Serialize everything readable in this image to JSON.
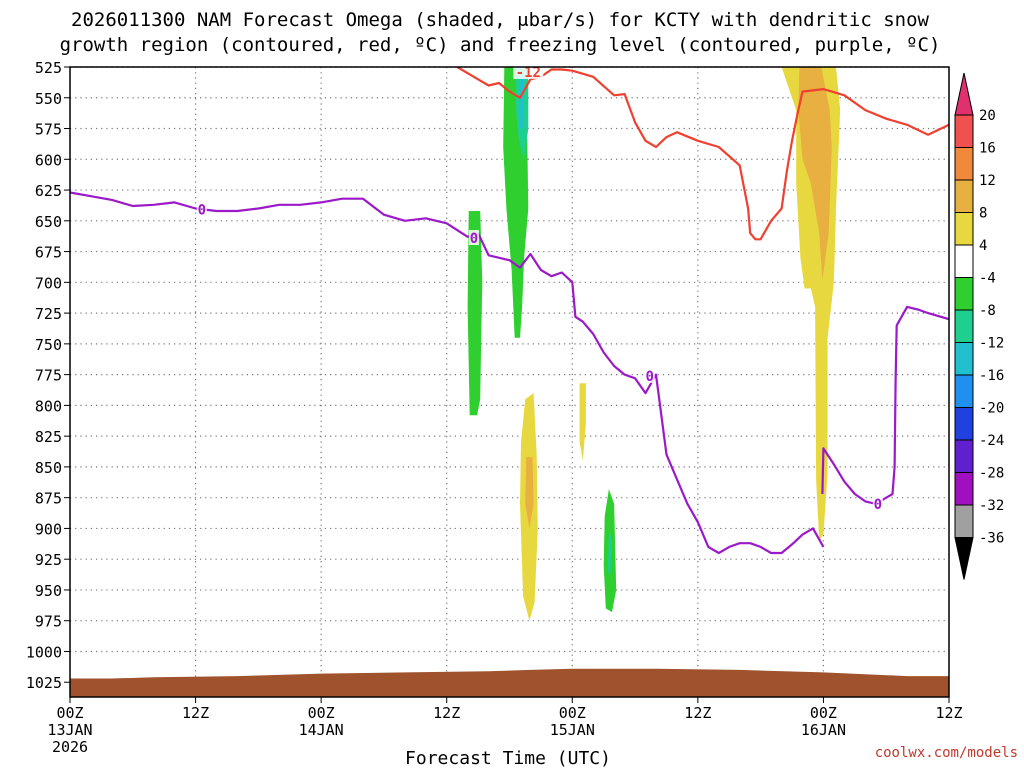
{
  "chart_data": {
    "type": "time-height forecast",
    "title_line1": "2026011300 NAM Forecast Omega (shaded, μbar/s) for KCTY with dendritic snow",
    "title_line2": "growth region (contoured, red, ºC) and freezing level (contoured, purple, ºC)",
    "xlabel": "Forecast Time (UTC)",
    "credit": "coolwx.com/models",
    "x_unit": "forecast hours from 2026-01-13 00Z",
    "xlim": [
      0,
      84
    ],
    "ylim": [
      525,
      1037
    ],
    "y_ticks": [
      525,
      550,
      575,
      600,
      625,
      650,
      675,
      700,
      725,
      750,
      775,
      800,
      825,
      850,
      875,
      900,
      925,
      950,
      975,
      1000,
      1025
    ],
    "x_ticks": [
      {
        "h": 0,
        "l1": "00Z",
        "l2": "13JAN",
        "l3": "2026"
      },
      {
        "h": 12,
        "l1": "12Z",
        "l2": "",
        "l3": ""
      },
      {
        "h": 24,
        "l1": "00Z",
        "l2": "14JAN",
        "l3": ""
      },
      {
        "h": 36,
        "l1": "12Z",
        "l2": "",
        "l3": ""
      },
      {
        "h": 48,
        "l1": "00Z",
        "l2": "15JAN",
        "l3": ""
      },
      {
        "h": 60,
        "l1": "12Z",
        "l2": "",
        "l3": ""
      },
      {
        "h": 72,
        "l1": "00Z",
        "l2": "16JAN",
        "l3": ""
      },
      {
        "h": 84,
        "l1": "12Z",
        "l2": "",
        "l3": ""
      }
    ],
    "colorbar": {
      "labels": [
        "20",
        "16",
        "12",
        "8",
        "4",
        "-4",
        "-8",
        "-12",
        "-16",
        "-20",
        "-24",
        "-28",
        "-32",
        "-36"
      ],
      "colors": [
        "#e03070",
        "#f05050",
        "#f08a3a",
        "#e8b040",
        "#e8d840",
        "#ffffff",
        "#2ecf2e",
        "#1fcf90",
        "#20c0d0",
        "#2090f0",
        "#2040e0",
        "#6020d0",
        "#a010c0",
        "#a0a0a0",
        "#000000"
      ]
    },
    "series": [
      {
        "name": "freezing level 0°C",
        "color": "#9b19c8",
        "contour_label": "0",
        "points": [
          [
            0,
            627
          ],
          [
            2,
            630
          ],
          [
            4,
            633
          ],
          [
            6,
            638
          ],
          [
            8,
            637
          ],
          [
            10,
            635
          ],
          [
            12,
            640
          ],
          [
            14,
            642
          ],
          [
            16,
            642
          ],
          [
            18,
            640
          ],
          [
            20,
            637
          ],
          [
            22,
            637
          ],
          [
            24,
            635
          ],
          [
            26,
            632
          ],
          [
            28,
            632
          ],
          [
            30,
            645
          ],
          [
            32,
            650
          ],
          [
            34,
            648
          ],
          [
            36,
            652
          ],
          [
            38,
            663
          ],
          [
            39,
            660
          ],
          [
            40,
            678
          ],
          [
            42,
            682
          ],
          [
            43,
            688
          ],
          [
            44,
            677
          ],
          [
            45,
            690
          ],
          [
            46,
            695
          ],
          [
            47,
            692
          ],
          [
            48,
            700
          ],
          [
            48.3,
            728
          ],
          [
            49,
            732
          ],
          [
            50,
            742
          ],
          [
            51,
            757
          ],
          [
            52,
            768
          ],
          [
            53,
            775
          ],
          [
            54,
            778
          ],
          [
            55,
            790
          ],
          [
            56,
            775
          ],
          [
            57,
            840
          ],
          [
            58,
            860
          ],
          [
            59,
            880
          ],
          [
            60,
            895
          ],
          [
            61,
            915
          ],
          [
            62,
            920
          ],
          [
            63,
            915
          ],
          [
            64,
            912
          ],
          [
            65,
            912
          ],
          [
            66,
            915
          ],
          [
            67,
            920
          ],
          [
            68,
            920
          ],
          [
            69,
            913
          ],
          [
            70,
            905
          ],
          [
            71,
            900
          ],
          [
            72,
            915
          ]
        ]
      },
      {
        "name": "freezing level 0°C (lower branch)",
        "color": "#9b19c8",
        "contour_label": "0",
        "points": [
          [
            71.9,
            872
          ],
          [
            72,
            835
          ],
          [
            73,
            848
          ],
          [
            74,
            862
          ],
          [
            75,
            872
          ],
          [
            76,
            878
          ],
          [
            77,
            880
          ],
          [
            78,
            875
          ],
          [
            78.6,
            872
          ],
          [
            78.8,
            850
          ],
          [
            78.9,
            780
          ],
          [
            79,
            735
          ],
          [
            80,
            720
          ],
          [
            81,
            722
          ],
          [
            82,
            725
          ],
          [
            84,
            730
          ]
        ]
      },
      {
        "name": "-12°C dendritic growth level",
        "color": "#f04030",
        "contour_label": "-12",
        "points": [
          [
            37,
            525
          ],
          [
            39,
            535
          ],
          [
            40,
            540
          ],
          [
            41,
            538
          ],
          [
            42,
            545
          ],
          [
            43,
            550
          ],
          [
            44,
            535
          ],
          [
            45,
            533
          ],
          [
            46,
            527
          ],
          [
            47,
            527
          ],
          [
            48,
            528
          ],
          [
            50,
            533
          ],
          [
            52,
            548
          ],
          [
            53,
            547
          ],
          [
            54,
            570
          ],
          [
            55,
            585
          ],
          [
            56,
            590
          ],
          [
            57,
            582
          ],
          [
            58,
            578
          ],
          [
            60,
            585
          ],
          [
            62,
            590
          ],
          [
            64,
            605
          ],
          [
            64.8,
            640
          ],
          [
            65,
            660
          ],
          [
            65.5,
            665
          ],
          [
            66,
            665
          ],
          [
            67,
            650
          ],
          [
            68,
            640
          ],
          [
            68.5,
            610
          ],
          [
            69,
            585
          ],
          [
            69.6,
            560
          ],
          [
            70,
            545
          ],
          [
            72,
            543
          ],
          [
            74,
            548
          ],
          [
            76,
            560
          ],
          [
            78,
            567
          ],
          [
            80,
            572
          ],
          [
            82,
            580
          ],
          [
            84,
            572
          ]
        ]
      }
    ],
    "omega_regions": [
      {
        "polygon": [
          [
            38.1,
            642
          ],
          [
            39.2,
            642
          ],
          [
            39.4,
            700
          ],
          [
            39.3,
            745
          ],
          [
            39.2,
            795
          ],
          [
            38.9,
            808
          ],
          [
            38.2,
            808
          ],
          [
            38.0,
            720
          ]
        ],
        "color": "#2ecf2e",
        "value": "-8"
      },
      {
        "polygon": [
          [
            41.5,
            525
          ],
          [
            42.7,
            525
          ],
          [
            43.4,
            560
          ],
          [
            43.7,
            585
          ],
          [
            43.8,
            640
          ],
          [
            43.4,
            680
          ],
          [
            43.2,
            720
          ],
          [
            43.0,
            745
          ],
          [
            42.5,
            745
          ],
          [
            42.2,
            690
          ],
          [
            41.7,
            640
          ],
          [
            41.4,
            590
          ]
        ],
        "color": "#2ecf2e",
        "value": "-8"
      },
      {
        "polygon": [
          [
            42.6,
            525
          ],
          [
            43.8,
            525
          ],
          [
            43.8,
            575
          ],
          [
            43.4,
            600
          ],
          [
            42.9,
            585
          ],
          [
            42.6,
            560
          ]
        ],
        "color": "#1fcf90",
        "value": "-12"
      },
      {
        "polygon": [
          [
            42.9,
            530
          ],
          [
            43.3,
            530
          ],
          [
            43.3,
            575
          ],
          [
            43.0,
            575
          ]
        ],
        "color": "#20c0d0",
        "value": "-16"
      },
      {
        "polygon": [
          [
            51.5,
            868
          ],
          [
            52.0,
            880
          ],
          [
            52.2,
            950
          ],
          [
            51.8,
            968
          ],
          [
            51.2,
            965
          ],
          [
            51.0,
            930
          ],
          [
            51.1,
            890
          ]
        ],
        "color": "#2ecf2e",
        "value": "-8"
      },
      {
        "polygon": [
          [
            51.5,
            900
          ],
          [
            51.8,
            910
          ],
          [
            51.6,
            940
          ],
          [
            51.4,
            935
          ]
        ],
        "color": "#1fcf90",
        "value": "-12"
      },
      {
        "polygon": [
          [
            43.5,
            795
          ],
          [
            44.3,
            790
          ],
          [
            44.6,
            840
          ],
          [
            44.7,
            900
          ],
          [
            44.4,
            960
          ],
          [
            43.9,
            975
          ],
          [
            43.3,
            955
          ],
          [
            43.0,
            880
          ],
          [
            43.1,
            830
          ]
        ],
        "color": "#e8d840",
        "value": "4"
      },
      {
        "polygon": [
          [
            43.6,
            842
          ],
          [
            44.2,
            842
          ],
          [
            44.3,
            880
          ],
          [
            43.9,
            900
          ],
          [
            43.5,
            880
          ]
        ],
        "color": "#e8b040",
        "value": "8"
      },
      {
        "polygon": [
          [
            48.7,
            782
          ],
          [
            49.3,
            782
          ],
          [
            49.3,
            815
          ],
          [
            49.0,
            845
          ],
          [
            48.7,
            830
          ]
        ],
        "color": "#e8d840",
        "value": "4"
      },
      {
        "polygon": [
          [
            68.0,
            525
          ],
          [
            73.2,
            525
          ],
          [
            73.6,
            560
          ],
          [
            73.2,
            640
          ],
          [
            73.0,
            700
          ],
          [
            72.4,
            745
          ],
          [
            72.4,
            855
          ],
          [
            72.0,
            905
          ],
          [
            71.6,
            910
          ],
          [
            71.3,
            860
          ],
          [
            71.2,
            720
          ],
          [
            70.8,
            705
          ],
          [
            70.2,
            705
          ],
          [
            69.8,
            680
          ],
          [
            69.4,
            620
          ],
          [
            69.4,
            560
          ]
        ],
        "color": "#e8d840",
        "value": "4"
      },
      {
        "polygon": [
          [
            69.7,
            525
          ],
          [
            71.8,
            525
          ],
          [
            72.6,
            560
          ],
          [
            72.8,
            590
          ],
          [
            72.5,
            660
          ],
          [
            71.9,
            698
          ],
          [
            71.6,
            660
          ],
          [
            70.8,
            620
          ],
          [
            70.0,
            600
          ],
          [
            69.6,
            560
          ]
        ],
        "color": "#e8b040",
        "value": "8"
      }
    ],
    "terrain": {
      "color": "#a0522d",
      "surface_pressure": [
        [
          0,
          1022
        ],
        [
          4,
          1022
        ],
        [
          8,
          1021
        ],
        [
          16,
          1020
        ],
        [
          24,
          1018
        ],
        [
          32,
          1017
        ],
        [
          40,
          1016
        ],
        [
          44,
          1015
        ],
        [
          48,
          1014
        ],
        [
          56,
          1014
        ],
        [
          64,
          1015
        ],
        [
          72,
          1017
        ],
        [
          80,
          1020
        ],
        [
          84,
          1020
        ]
      ]
    }
  }
}
